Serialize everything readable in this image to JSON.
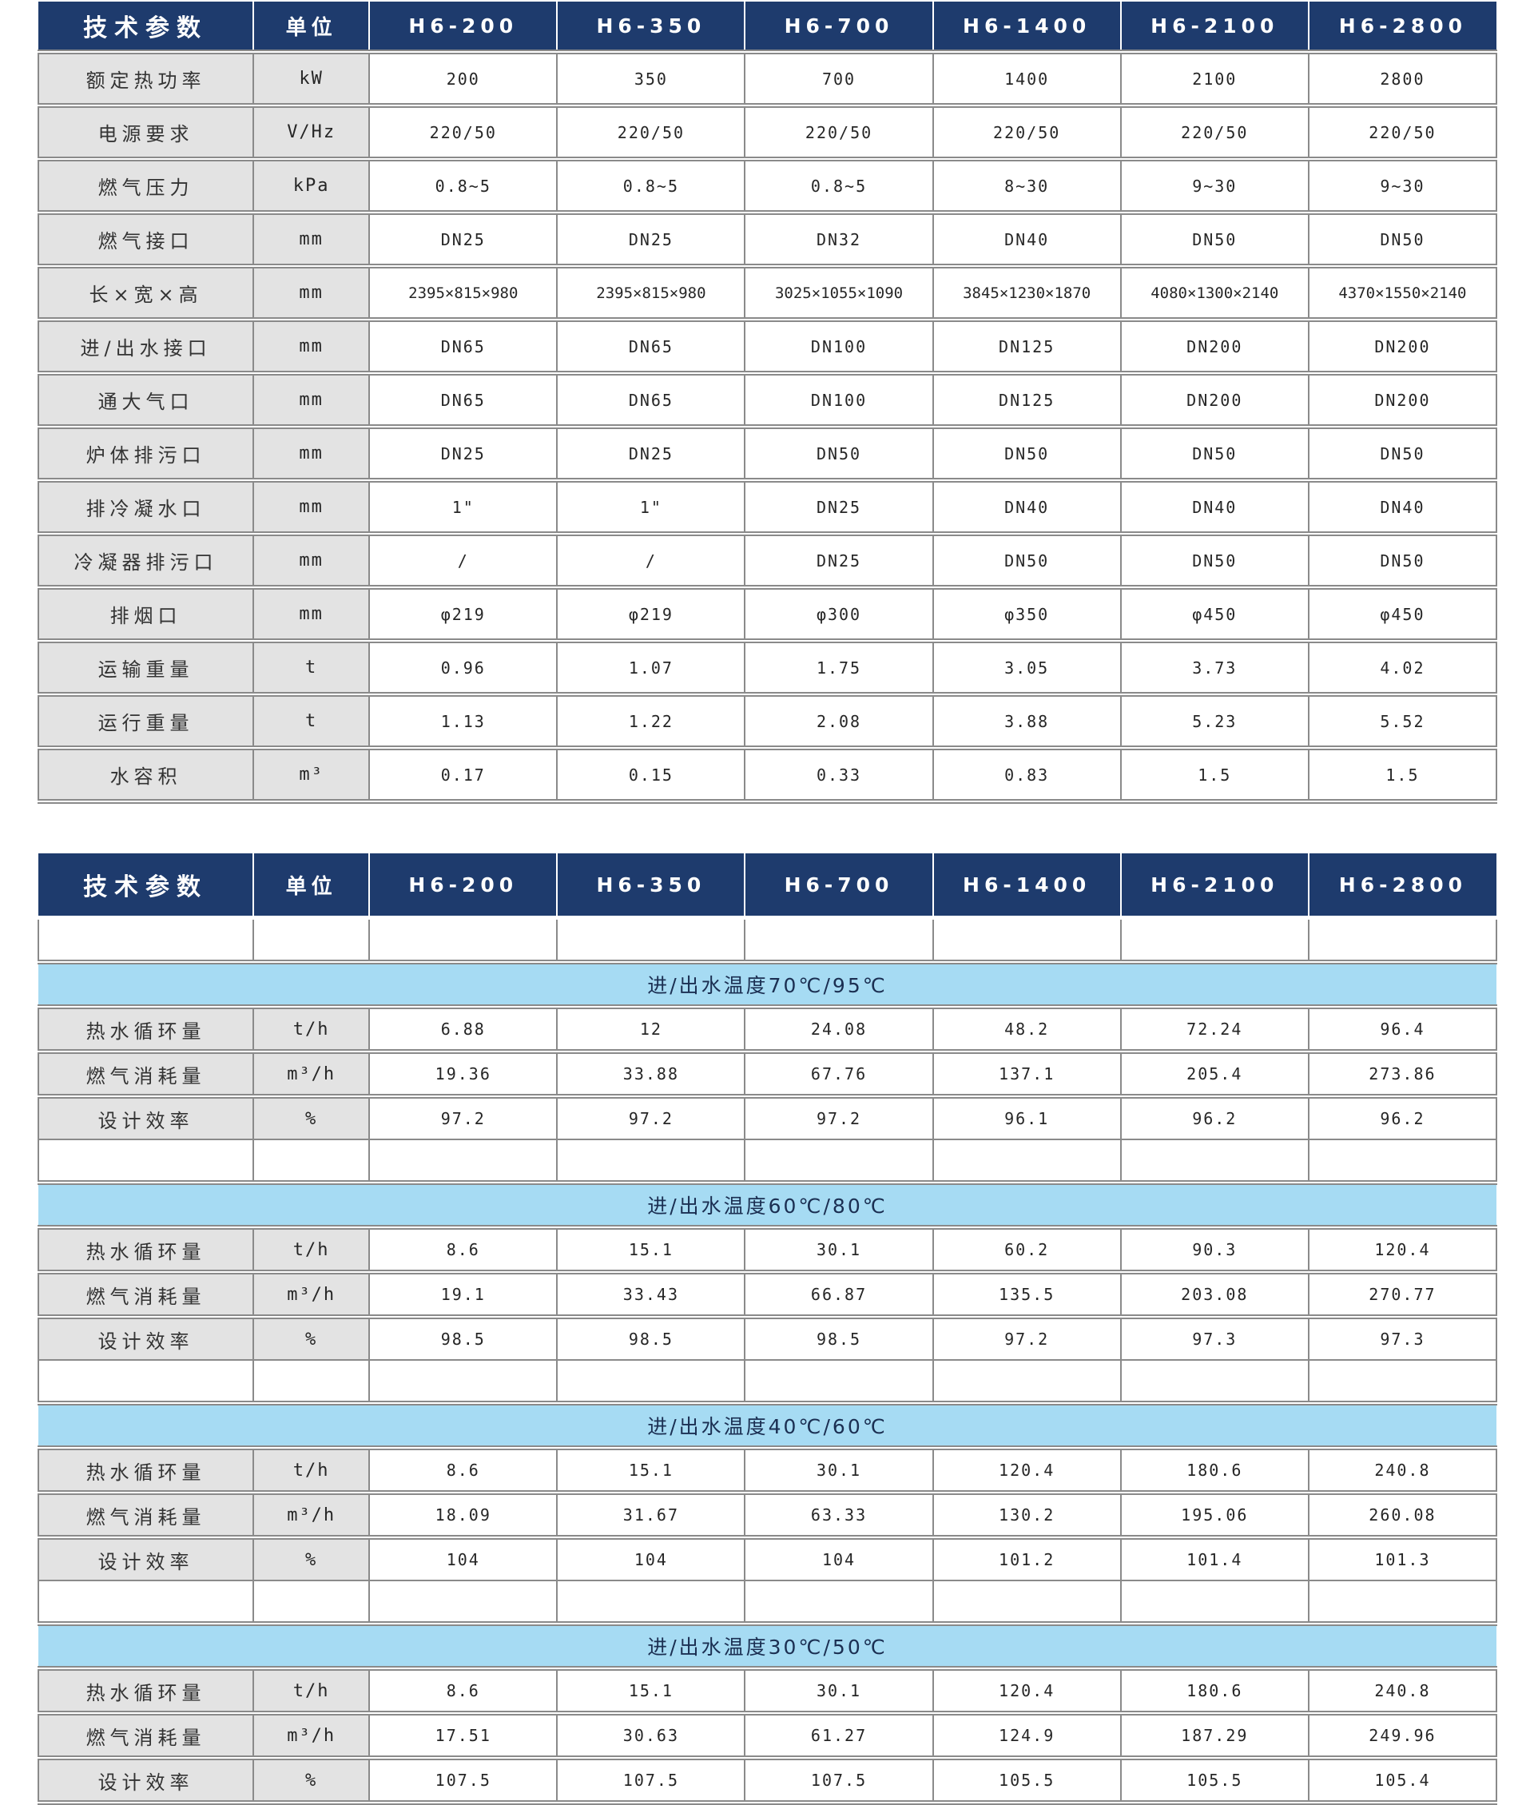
{
  "table_header": {
    "param": "技术参数",
    "unit": "单位"
  },
  "columns": [
    "H6-200",
    "H6-350",
    "H6-700",
    "H6-1400",
    "H6-2100",
    "H6-2800"
  ],
  "top_table": {
    "rows": [
      {
        "label": "额定热功率",
        "unit": "kW",
        "values": [
          "200",
          "350",
          "700",
          "1400",
          "2100",
          "2800"
        ]
      },
      {
        "label": "电源要求",
        "unit": "V/Hz",
        "values": [
          "220/50",
          "220/50",
          "220/50",
          "220/50",
          "220/50",
          "220/50"
        ]
      },
      {
        "label": "燃气压力",
        "unit": "kPa",
        "values": [
          "0.8~5",
          "0.8~5",
          "0.8~5",
          "8~30",
          "9~30",
          "9~30"
        ]
      },
      {
        "label": "燃气接口",
        "unit": "mm",
        "values": [
          "DN25",
          "DN25",
          "DN32",
          "DN40",
          "DN50",
          "DN50"
        ]
      },
      {
        "label": "长×宽×高",
        "unit": "mm",
        "values": [
          "2395×815×980",
          "2395×815×980",
          "3025×1055×1090",
          "3845×1230×1870",
          "4080×1300×2140",
          "4370×1550×2140"
        ]
      },
      {
        "label": "进/出水接口",
        "unit": "mm",
        "values": [
          "DN65",
          "DN65",
          "DN100",
          "DN125",
          "DN200",
          "DN200"
        ]
      },
      {
        "label": "通大气口",
        "unit": "mm",
        "values": [
          "DN65",
          "DN65",
          "DN100",
          "DN125",
          "DN200",
          "DN200"
        ]
      },
      {
        "label": "炉体排污口",
        "unit": "mm",
        "values": [
          "DN25",
          "DN25",
          "DN50",
          "DN50",
          "DN50",
          "DN50"
        ]
      },
      {
        "label": "排冷凝水口",
        "unit": "mm",
        "values": [
          "1\"",
          "1\"",
          "DN25",
          "DN40",
          "DN40",
          "DN40"
        ]
      },
      {
        "label": "冷凝器排污口",
        "unit": "mm",
        "values": [
          "/",
          "/",
          "DN25",
          "DN50",
          "DN50",
          "DN50"
        ]
      },
      {
        "label": "排烟口",
        "unit": "mm",
        "values": [
          "φ219",
          "φ219",
          "φ300",
          "φ350",
          "φ450",
          "φ450"
        ]
      },
      {
        "label": "运输重量",
        "unit": "t",
        "values": [
          "0.96",
          "1.07",
          "1.75",
          "3.05",
          "3.73",
          "4.02"
        ]
      },
      {
        "label": "运行重量",
        "unit": "t",
        "values": [
          "1.13",
          "1.22",
          "2.08",
          "3.88",
          "5.23",
          "5.52"
        ]
      },
      {
        "label": "水容积",
        "unit": "m³",
        "values": [
          "0.17",
          "0.15",
          "0.33",
          "0.83",
          "1.5",
          "1.5"
        ]
      }
    ]
  },
  "bottom_table": {
    "sections": [
      {
        "banner": "进/出水温度70℃/95℃",
        "rows": [
          {
            "label": "热水循环量",
            "unit": "t/h",
            "values": [
              "6.88",
              "12",
              "24.08",
              "48.2",
              "72.24",
              "96.4"
            ]
          },
          {
            "label": "燃气消耗量",
            "unit": "m³/h",
            "values": [
              "19.36",
              "33.88",
              "67.76",
              "137.1",
              "205.4",
              "273.86"
            ]
          },
          {
            "label": "设计效率",
            "unit": "%",
            "values": [
              "97.2",
              "97.2",
              "97.2",
              "96.1",
              "96.2",
              "96.2"
            ]
          }
        ]
      },
      {
        "banner": "进/出水温度60℃/80℃",
        "rows": [
          {
            "label": "热水循环量",
            "unit": "t/h",
            "values": [
              "8.6",
              "15.1",
              "30.1",
              "60.2",
              "90.3",
              "120.4"
            ]
          },
          {
            "label": "燃气消耗量",
            "unit": "m³/h",
            "values": [
              "19.1",
              "33.43",
              "66.87",
              "135.5",
              "203.08",
              "270.77"
            ]
          },
          {
            "label": "设计效率",
            "unit": "%",
            "values": [
              "98.5",
              "98.5",
              "98.5",
              "97.2",
              "97.3",
              "97.3"
            ]
          }
        ]
      },
      {
        "banner": "进/出水温度40℃/60℃",
        "rows": [
          {
            "label": "热水循环量",
            "unit": "t/h",
            "values": [
              "8.6",
              "15.1",
              "30.1",
              "120.4",
              "180.6",
              "240.8"
            ]
          },
          {
            "label": "燃气消耗量",
            "unit": "m³/h",
            "values": [
              "18.09",
              "31.67",
              "63.33",
              "130.2",
              "195.06",
              "260.08"
            ]
          },
          {
            "label": "设计效率",
            "unit": "%",
            "values": [
              "104",
              "104",
              "104",
              "101.2",
              "101.4",
              "101.3"
            ]
          }
        ]
      },
      {
        "banner": "进/出水温度30℃/50℃",
        "rows": [
          {
            "label": "热水循环量",
            "unit": "t/h",
            "values": [
              "8.6",
              "15.1",
              "30.1",
              "120.4",
              "180.6",
              "240.8"
            ]
          },
          {
            "label": "燃气消耗量",
            "unit": "m³/h",
            "values": [
              "17.51",
              "30.63",
              "61.27",
              "124.9",
              "187.29",
              "249.96"
            ]
          },
          {
            "label": "设计效率",
            "unit": "%",
            "values": [
              "107.5",
              "107.5",
              "107.5",
              "105.5",
              "105.5",
              "105.4"
            ]
          }
        ]
      }
    ]
  },
  "colors": {
    "header_bg": "#1e3b6d",
    "header_text": "#ffffff",
    "banner_bg": "#a6dbf3",
    "banner_text": "#1b2f52",
    "label_bg": "#e3e3e3",
    "border": "#8a8a8a",
    "text": "#262626"
  }
}
